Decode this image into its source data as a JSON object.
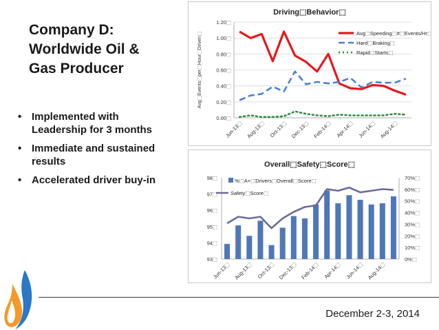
{
  "slide": {
    "title": "Company D:\nWorldwide Oil &\nGas Producer",
    "bullets": [
      "Implemented with Leadership for 3 months",
      "Immediate and sustained results",
      "Accelerated driver buy-in"
    ],
    "footer_date": "December 2-3, 2014"
  },
  "colors": {
    "speeding": "#e8161b",
    "hard_braking": "#4a7fd4",
    "rapid_starts": "#2e8b3e",
    "bars": "#4f77b8",
    "safety_line": "#6b6a9c"
  },
  "chart_data": [
    {
      "type": "line",
      "title": "Driving⬚Behavior⬚",
      "ylabel": "Avg⬚Events⬚per⬚Hour⬚Driven⬚",
      "ylim": [
        0,
        1.2
      ],
      "yticks": [
        "0.00⬚",
        "0.20⬚",
        "0.40⬚",
        "0.60⬚",
        "0.80⬚",
        "1.00⬚",
        "1.20⬚"
      ],
      "xticks": [
        "Jun-13⬚",
        "Aug-13⬚",
        "Oct-13⬚",
        "Dec-13⬚",
        "Feb-14⬚",
        "Apr-14⬚",
        "Jun-14⬚",
        "Aug-14⬚"
      ],
      "legend_position": "top-right",
      "series": [
        {
          "name": "Avg⬚Speeding⬚#⬚Events/Hr⬚",
          "style": "solid",
          "values": [
            1.08,
            1.0,
            1.05,
            0.71,
            1.08,
            0.78,
            0.7,
            0.58,
            0.8,
            0.43,
            0.37,
            0.36,
            0.41,
            0.4,
            0.34,
            0.29
          ]
        },
        {
          "name": "Hard⬚Braking⬚",
          "style": "dashed",
          "values": [
            0.22,
            0.28,
            0.3,
            0.39,
            0.33,
            0.58,
            0.42,
            0.45,
            0.43,
            0.45,
            0.5,
            0.38,
            0.45,
            0.44,
            0.44,
            0.49
          ]
        },
        {
          "name": "Rapid⬚Starts⬚",
          "style": "dotted",
          "values": [
            0.01,
            0.03,
            0.01,
            0.01,
            0.02,
            0.08,
            0.05,
            0.03,
            0.02,
            0.04,
            0.03,
            0.03,
            0.03,
            0.03,
            0.05,
            0.04
          ]
        }
      ]
    },
    {
      "type": "bar",
      "title": "Overall⬚Safety⬚Score⬚",
      "ylim": [
        93,
        98
      ],
      "yticks": [
        "93⬚",
        "94⬚",
        "95⬚",
        "96⬚",
        "97⬚",
        "98⬚"
      ],
      "y2lim": [
        0,
        70
      ],
      "y2ticks": [
        "0%⬚",
        "10%⬚",
        "20%⬚",
        "30%⬚",
        "40%⬚",
        "50%⬚",
        "60%⬚",
        "70%⬚"
      ],
      "xticks": [
        "Jun-13⬚",
        "Aug-13⬚",
        "Oct-13⬚",
        "Dec-13⬚",
        "Feb-14⬚",
        "Apr-14⬚",
        "Jun-14⬚",
        "Aug-14⬚"
      ],
      "legend_position": "top-left",
      "series": [
        {
          "name": "%⬚A+⬚Drivers⬚Overall⬚Score⬚",
          "type": "bar",
          "axis": "right",
          "values": [
            13,
            29,
            20,
            33,
            12,
            27,
            37,
            35,
            47,
            59,
            48,
            55,
            51,
            47,
            48,
            54
          ]
        },
        {
          "name": "Safety⬚Score⬚",
          "type": "line",
          "axis": "left",
          "values": [
            95.2,
            95.6,
            95.5,
            95.6,
            94.9,
            95.5,
            95.9,
            96.2,
            96.3,
            97.3,
            97.2,
            97.4,
            97.1,
            97.2,
            97.3,
            97.25
          ]
        }
      ]
    }
  ]
}
